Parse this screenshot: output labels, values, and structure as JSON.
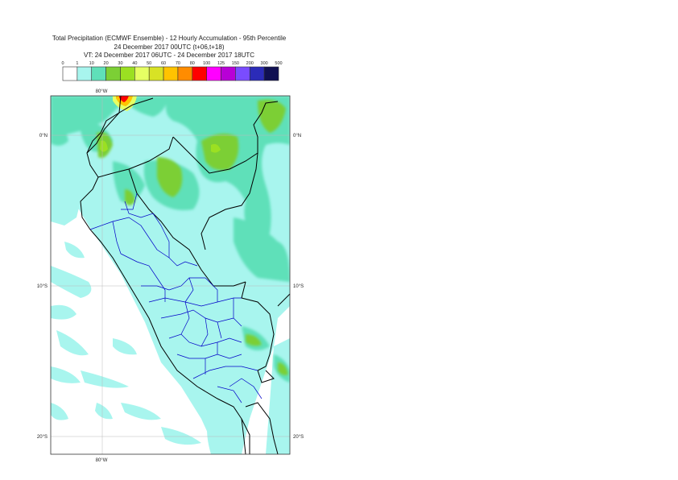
{
  "title": {
    "line1": "Total Precipitation (ECMWF Ensemble) - 12 Hourly Accumulation - 95th Percentile",
    "line2": "24 December 2017 00UTC (t+06,t+18)",
    "line3": "VT: 24 December 2017 06UTC - 24 December 2017 18UTC"
  },
  "legend": {
    "ticks": [
      "0",
      "1",
      "10",
      "20",
      "30",
      "40",
      "50",
      "60",
      "70",
      "80",
      "100",
      "125",
      "150",
      "200",
      "300",
      "500"
    ],
    "colors": [
      "#ffffff",
      "#a8f5ee",
      "#5fe0b9",
      "#7ccf35",
      "#9be022",
      "#e6ff63",
      "#d8e225",
      "#ffc300",
      "#ff8c00",
      "#ff0000",
      "#ff00ff",
      "#b800d6",
      "#7a4cff",
      "#2b2bb8",
      "#101052"
    ]
  },
  "map": {
    "lon_labels": {
      "top": "80°W",
      "bottom": "80°W"
    },
    "lat_labels": [
      {
        "label": "0°N"
      },
      {
        "label": "10°S"
      },
      {
        "label": "20°S"
      }
    ]
  }
}
